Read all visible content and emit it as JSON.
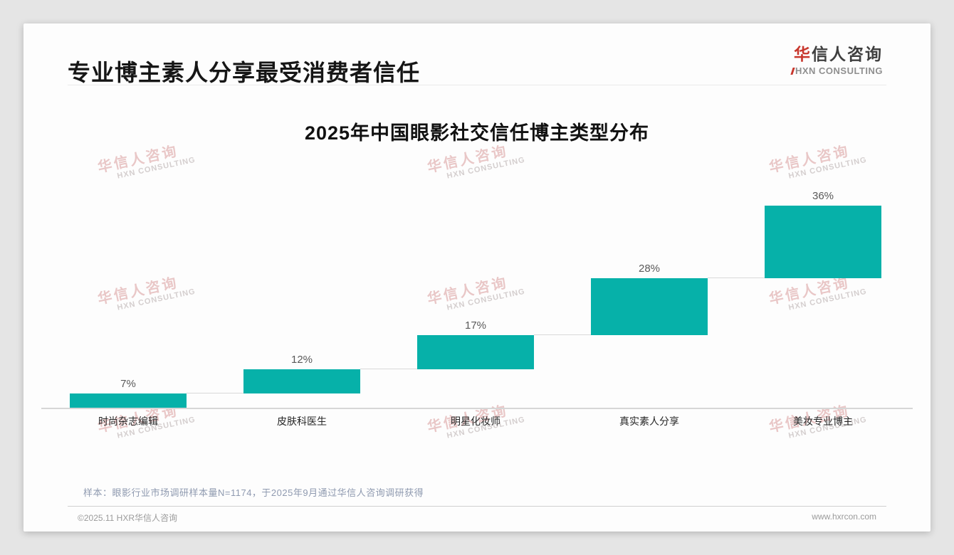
{
  "header": {
    "title": "专业博主素人分享最受消费者信任"
  },
  "logo": {
    "cn_first": "华",
    "cn_rest": "信人咨询",
    "en": "HXN CONSULTING",
    "accent_color": "#c8372d"
  },
  "watermark": {
    "cn": "华信人咨询",
    "en": "HXN CONSULTING"
  },
  "chart_data": {
    "type": "bar",
    "subtype": "waterfall-step",
    "title": "2025年中国眼影社交信任博主类型分布",
    "categories": [
      "时尚杂志编辑",
      "皮肤科医生",
      "明星化妆师",
      "真实素人分享",
      "美妆专业博主"
    ],
    "values": [
      7,
      12,
      17,
      28,
      36
    ],
    "labels": [
      "7%",
      "12%",
      "17%",
      "28%",
      "36%"
    ],
    "unit": "%",
    "ylim": [
      0,
      100
    ],
    "cumulative": true,
    "bar_color": "#06b1a9",
    "value_label_color": "#595959",
    "axis_color": "#d6d6d6",
    "grid": false,
    "legend": "none"
  },
  "footnote": {
    "text": "样本：眼影行业市场调研样本量N=1174，于2025年9月通过华信人咨询调研获得"
  },
  "footer": {
    "left": "©2025.11 HXR华信人咨询",
    "right": "www.hxrcon.com"
  }
}
